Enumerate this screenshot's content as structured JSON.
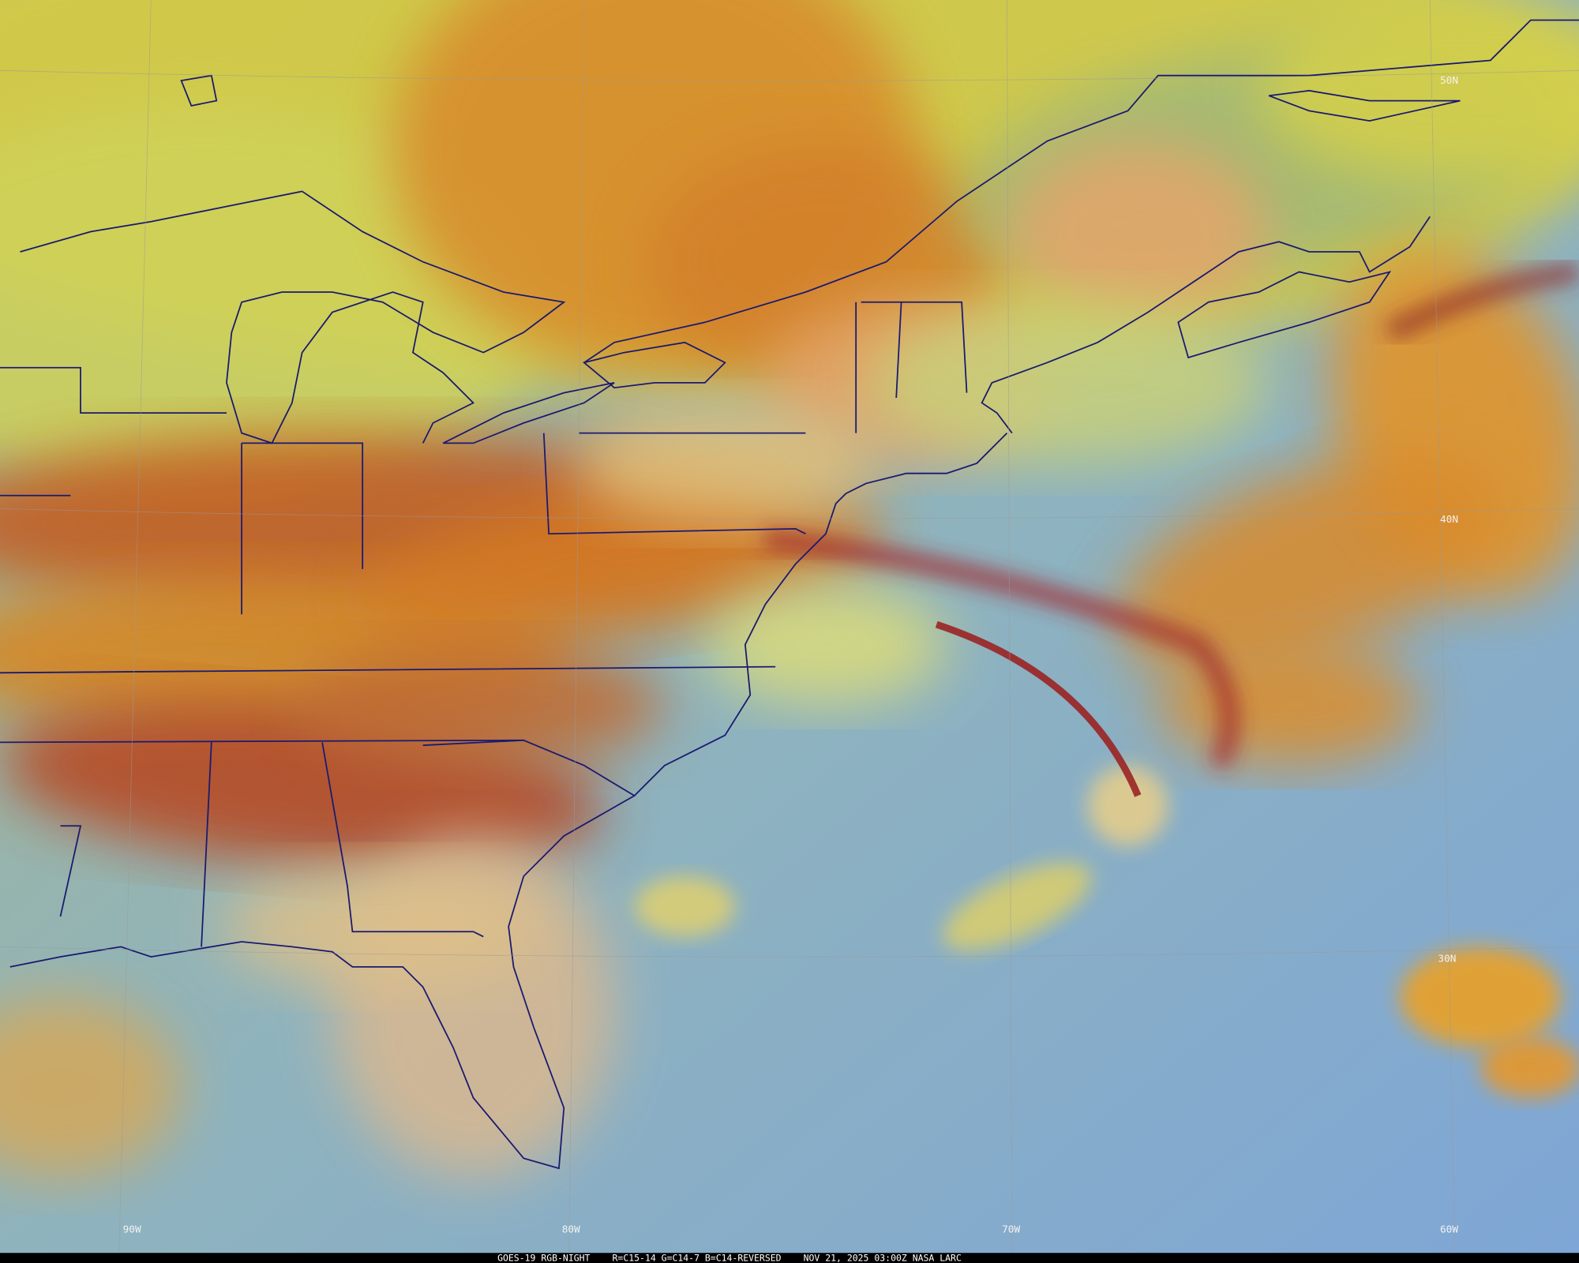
{
  "map": {
    "lat_labels": [
      "50N",
      "40N",
      "30N"
    ],
    "lon_labels": [
      "90W",
      "80W",
      "70W",
      "60W"
    ],
    "caption": [
      "GOES-19 RGB-NIGHT",
      "R=C15-14 G=C14-7 B=C14-REVERSED",
      "NOV 21, 2025 03:00Z NASA LARC"
    ]
  }
}
